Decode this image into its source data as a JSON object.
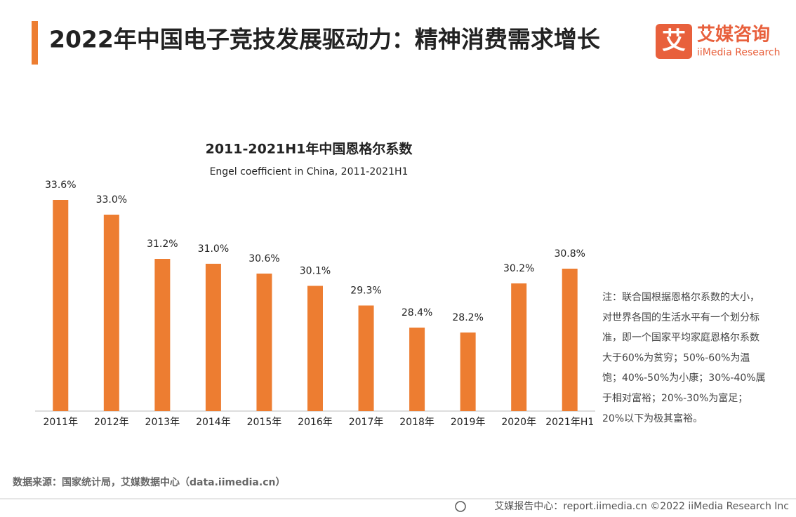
{
  "header": {
    "title": "2022年中国电子竞技发展驱动力：精神消费需求增长",
    "logo_mark": "艾",
    "logo_cn": "艾媒咨询",
    "logo_en": "iiMedia Research"
  },
  "chart_data": {
    "type": "bar",
    "title": "2011-2021H1年中国恩格尔系数",
    "subtitle": "Engel coefficient in China, 2011-2021H1",
    "categories": [
      "2011年",
      "2012年",
      "2013年",
      "2014年",
      "2015年",
      "2016年",
      "2017年",
      "2018年",
      "2019年",
      "2020年",
      "2021年H1"
    ],
    "values": [
      33.6,
      33.0,
      31.2,
      31.0,
      30.6,
      30.1,
      29.3,
      28.4,
      28.2,
      30.2,
      30.8
    ],
    "value_labels": [
      "33.6%",
      "33.0%",
      "31.2%",
      "31.0%",
      "30.6%",
      "30.1%",
      "29.3%",
      "28.4%",
      "28.2%",
      "30.2%",
      "30.8%"
    ],
    "color": "#ed7d31",
    "ylim": [
      25,
      35
    ]
  },
  "note": [
    "注：联合国根据恩格尔系数的大小，",
    "对世界各国的生活水平有一个划分标",
    "准，即一个国家平均家庭恩格尔系数",
    "大于60%为贫穷；50%-60%为温",
    "饱；40%-50%为小康；30%-40%属",
    "于相对富裕；20%-30%为富足；",
    "20%以下为极其富裕。"
  ],
  "source": "数据来源：国家统计局，艾媒数据中心（data.iimedia.cn）",
  "footer": "艾媒报告中心：report.iimedia.cn  ©2022  iiMedia Research  Inc"
}
